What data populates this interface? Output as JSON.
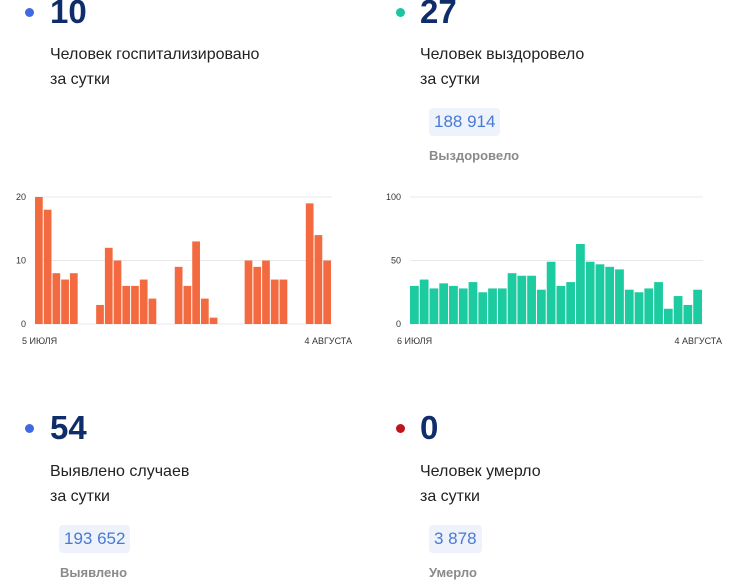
{
  "colors": {
    "hospitalized": "#4169e1",
    "recovered": "#1cc4a0",
    "cases": "#4169e1",
    "deaths": "#c0141c",
    "bar_orange": "#f46a40",
    "bar_teal": "#1ccb9f"
  },
  "hospitalized": {
    "value": "10",
    "label_line1": "Человек госпитализировано",
    "label_line2": "за сутки"
  },
  "recovered": {
    "value": "27",
    "label_line1": "Человек выздоровело",
    "label_line2": "за сутки",
    "total": "188 914",
    "caption": "Выздоровело"
  },
  "cases": {
    "value": "54",
    "label_line1": "Выявлено случаев",
    "label_line2": "за сутки",
    "total": "193 652",
    "caption": "Выявлено"
  },
  "deaths": {
    "value": "0",
    "label_line1": "Человек умерло",
    "label_line2": "за сутки",
    "total": "3 878",
    "caption": "Умерло"
  },
  "chart_data": [
    {
      "type": "bar",
      "start_label": "5 ИЮЛЯ",
      "end_label": "4 АВГУСТА",
      "y_ticks": [
        "20",
        "10",
        "0"
      ],
      "ylim": [
        0,
        20
      ],
      "values": [
        20,
        18,
        8,
        7,
        8,
        null,
        null,
        3,
        12,
        10,
        6,
        6,
        7,
        4,
        null,
        null,
        9,
        6,
        13,
        4,
        1,
        null,
        null,
        null,
        10,
        9,
        10,
        7,
        7,
        null,
        null,
        19,
        14,
        10
      ],
      "grid": true
    },
    {
      "type": "bar",
      "start_label": "6 ИЮЛЯ",
      "end_label": "4 АВГУСТА",
      "y_ticks": [
        "100",
        "50",
        "0"
      ],
      "ylim": [
        0,
        100
      ],
      "values": [
        30,
        35,
        28,
        32,
        30,
        28,
        33,
        25,
        28,
        28,
        40,
        38,
        38,
        27,
        49,
        30,
        33,
        63,
        49,
        47,
        45,
        43,
        27,
        25,
        28,
        33,
        12,
        22,
        15,
        27
      ],
      "grid": true
    }
  ]
}
